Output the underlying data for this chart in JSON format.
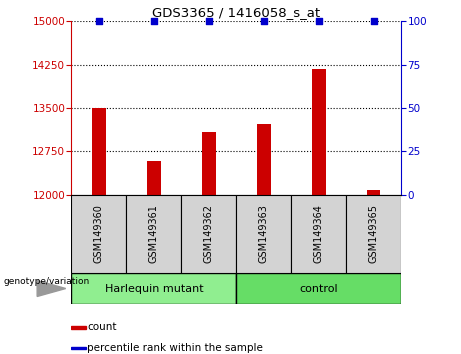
{
  "title": "GDS3365 / 1416058_s_at",
  "samples": [
    "GSM149360",
    "GSM149361",
    "GSM149362",
    "GSM149363",
    "GSM149364",
    "GSM149365"
  ],
  "counts": [
    13500,
    12580,
    13080,
    13220,
    14180,
    12080
  ],
  "percentile_ranks": [
    100,
    100,
    100,
    100,
    100,
    100
  ],
  "ylim_left": [
    12000,
    15000
  ],
  "ylim_right": [
    0,
    100
  ],
  "yticks_left": [
    12000,
    12750,
    13500,
    14250,
    15000
  ],
  "yticks_right": [
    0,
    25,
    50,
    75,
    100
  ],
  "bar_color": "#cc0000",
  "percentile_color": "#0000cc",
  "bar_width": 0.25,
  "groups": [
    {
      "label": "Harlequin mutant",
      "color": "#90ee90"
    },
    {
      "label": "control",
      "color": "#66dd66"
    }
  ],
  "genotype_label": "genotype/variation",
  "legend_count_label": "count",
  "legend_percentile_label": "percentile rank within the sample",
  "sample_box_color": "#d3d3d3",
  "fig_width": 4.61,
  "fig_height": 3.54,
  "dpi": 100
}
